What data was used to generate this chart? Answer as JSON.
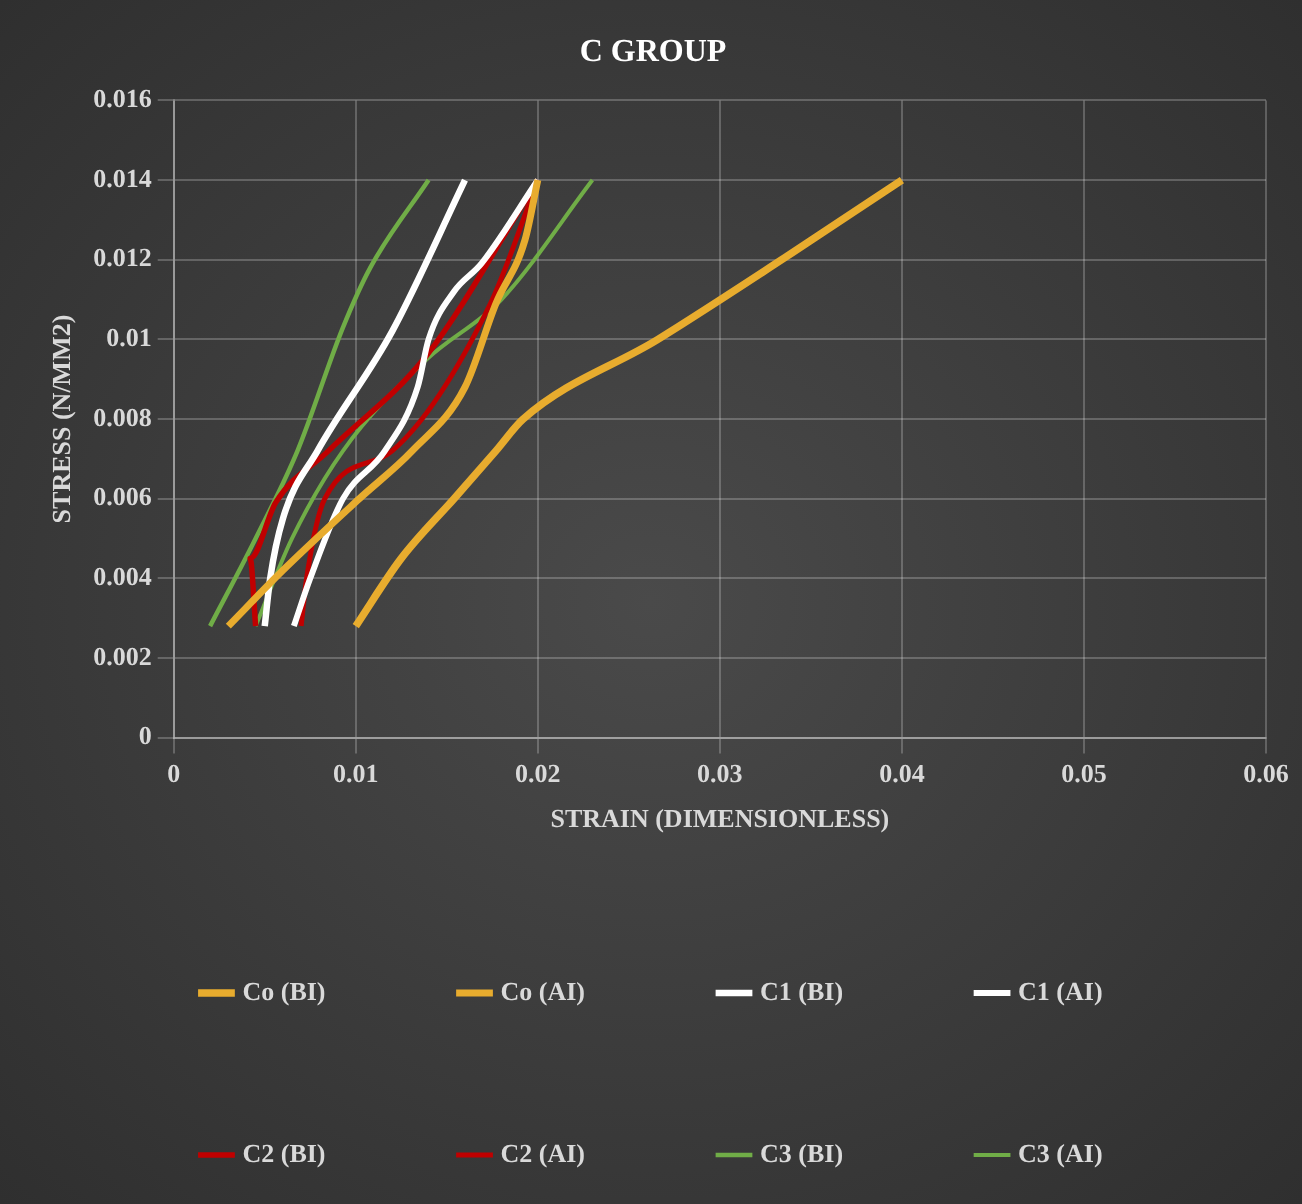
{
  "chart_data": {
    "type": "line",
    "title": "C GROUP",
    "xlabel": "STRAIN (DIMENSIONLESS)",
    "ylabel": "STRESS (N/MM2)",
    "xlim": [
      0,
      0.06
    ],
    "xticks": [
      0,
      0.01,
      0.02,
      0.03,
      0.04,
      0.05,
      0.06
    ],
    "ylim": [
      0,
      0.016
    ],
    "yticks": [
      0,
      0.002,
      0.004,
      0.006,
      0.008,
      0.01,
      0.012,
      0.014,
      0.016
    ],
    "grid": true,
    "legend": "bottom",
    "marker": "none",
    "line_style": "solid",
    "series": [
      {
        "name": "Co (BI)",
        "color": "#e8ac2e",
        "x": [
          0.01,
          0.0125,
          0.0154,
          0.0177,
          0.0192,
          0.0266,
          0.0334,
          0.04
        ],
        "values": [
          0.0028,
          0.0045,
          0.006,
          0.0072,
          0.008,
          0.01,
          0.012,
          0.014
        ]
      },
      {
        "name": "Co (AI)",
        "color": "#e8ac2e",
        "x": [
          0.003,
          0.006,
          0.0102,
          0.0131,
          0.016,
          0.0177,
          0.0193,
          0.02
        ],
        "values": [
          0.0028,
          0.0042,
          0.006,
          0.0072,
          0.0088,
          0.0109,
          0.0125,
          0.014
        ]
      },
      {
        "name": "C1 (BI)",
        "color": "#ffffff",
        "x": [
          0.005,
          0.0053,
          0.006,
          0.0079,
          0.012,
          0.016
        ],
        "values": [
          0.0028,
          0.004,
          0.0055,
          0.0072,
          0.0102,
          0.014
        ]
      },
      {
        "name": "C1 (AI)",
        "color": "#ffffff",
        "x": [
          0.0066,
          0.0075,
          0.0093,
          0.0116,
          0.0134,
          0.014,
          0.0154,
          0.0169,
          0.02
        ],
        "values": [
          0.0028,
          0.004,
          0.006,
          0.0072,
          0.0088,
          0.01,
          0.0112,
          0.0119,
          0.014
        ]
      },
      {
        "name": "C2 (BI)",
        "color": "#c00000",
        "x": [
          0.0045,
          0.0042,
          0.0056,
          0.0085,
          0.0139,
          0.02
        ],
        "values": [
          0.0028,
          0.0045,
          0.0059,
          0.0072,
          0.0096,
          0.014
        ]
      },
      {
        "name": "C2 (AI)",
        "color": "#c00000",
        "x": [
          0.007,
          0.0073,
          0.0083,
          0.012,
          0.0174,
          0.02
        ],
        "values": [
          0.0028,
          0.004,
          0.006,
          0.0072,
          0.0109,
          0.014
        ]
      },
      {
        "name": "C3 (BI)",
        "color": "#70ad47",
        "x": [
          0.002,
          0.0045,
          0.0068,
          0.0093,
          0.0108,
          0.014
        ],
        "values": [
          0.0028,
          0.005,
          0.0072,
          0.0103,
          0.0118,
          0.014
        ]
      },
      {
        "name": "C3 (AI)",
        "color": "#70ad47",
        "x": [
          0.0045,
          0.0065,
          0.0093,
          0.0139,
          0.018,
          0.023
        ],
        "values": [
          0.0028,
          0.005,
          0.0072,
          0.0095,
          0.011,
          0.014
        ]
      }
    ]
  }
}
